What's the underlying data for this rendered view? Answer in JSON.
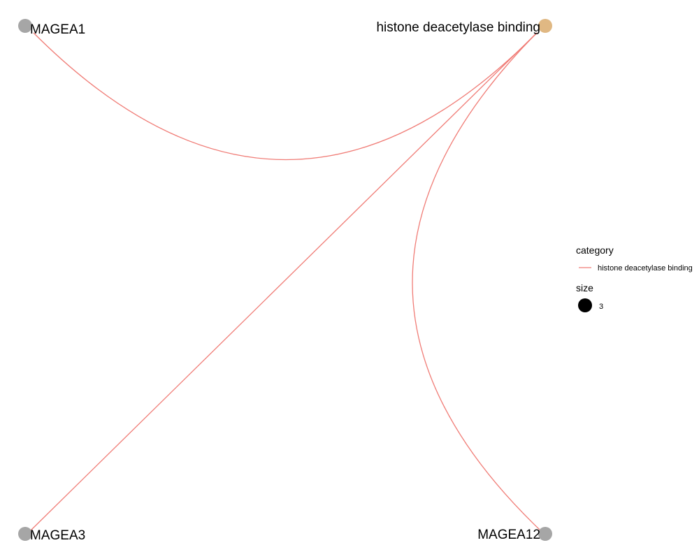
{
  "nodes": [
    {
      "id": "n-magea1",
      "label": "MAGEA1",
      "type": "gene",
      "color": "#a6a6a6"
    },
    {
      "id": "n-hdb",
      "label": "histone deacetylase binding",
      "type": "category",
      "color": "#e0b883"
    },
    {
      "id": "n-magea3",
      "label": "MAGEA3",
      "type": "gene",
      "color": "#a6a6a6"
    },
    {
      "id": "n-magea12",
      "label": "MAGEA12",
      "type": "gene",
      "color": "#a6a6a6"
    }
  ],
  "edges": [
    {
      "from": "n-hdb",
      "to": "n-magea1",
      "category": "histone deacetylase binding"
    },
    {
      "from": "n-hdb",
      "to": "n-magea3",
      "category": "histone deacetylase binding"
    },
    {
      "from": "n-hdb",
      "to": "n-magea12",
      "category": "histone deacetylase binding"
    }
  ],
  "edge_color": "#f07c76",
  "legend": {
    "category_title": "category",
    "category_entry": "histone deacetylase binding",
    "size_title": "size",
    "size_entry": "3",
    "size_dot_color": "#000000"
  }
}
